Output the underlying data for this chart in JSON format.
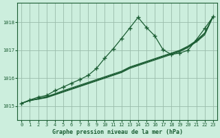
{
  "bg_color": "#cceedd",
  "grid_color": "#99bbaa",
  "line_color": "#1a5c32",
  "title": "Graphe pression niveau de la mer (hPa)",
  "xlim": [
    -0.5,
    23.5
  ],
  "ylim": [
    1014.5,
    1018.7
  ],
  "yticks": [
    1015,
    1016,
    1017,
    1018
  ],
  "xticks": [
    0,
    1,
    2,
    3,
    4,
    5,
    6,
    7,
    8,
    9,
    10,
    11,
    12,
    13,
    14,
    15,
    16,
    17,
    18,
    19,
    20,
    21,
    22,
    23
  ],
  "series": [
    {
      "x": [
        0,
        1,
        2,
        3,
        4,
        5,
        6,
        7,
        8,
        9,
        10,
        11,
        12,
        13,
        14,
        15,
        16,
        17,
        18,
        19,
        20,
        21,
        22,
        23
      ],
      "y": [
        1015.1,
        1015.2,
        1015.25,
        1015.3,
        1015.4,
        1015.5,
        1015.6,
        1015.7,
        1015.8,
        1015.9,
        1016.0,
        1016.1,
        1016.2,
        1016.35,
        1016.45,
        1016.55,
        1016.65,
        1016.75,
        1016.85,
        1016.95,
        1017.1,
        1017.3,
        1017.55,
        1018.2
      ],
      "marker": null,
      "lw": 0.9
    },
    {
      "x": [
        0,
        1,
        2,
        3,
        4,
        5,
        6,
        7,
        8,
        9,
        10,
        11,
        12,
        13,
        14,
        15,
        16,
        17,
        18,
        19,
        20,
        21,
        22,
        23
      ],
      "y": [
        1015.1,
        1015.2,
        1015.25,
        1015.32,
        1015.42,
        1015.52,
        1015.62,
        1015.72,
        1015.82,
        1015.92,
        1016.02,
        1016.12,
        1016.22,
        1016.38,
        1016.48,
        1016.58,
        1016.68,
        1016.78,
        1016.88,
        1016.98,
        1017.12,
        1017.32,
        1017.6,
        1018.2
      ],
      "marker": null,
      "lw": 0.9
    },
    {
      "x": [
        0,
        1,
        2,
        3,
        4,
        5,
        6,
        7,
        8,
        9,
        10,
        11,
        12,
        13,
        14,
        15,
        16,
        17,
        18,
        19,
        20,
        21,
        22,
        23
      ],
      "y": [
        1015.1,
        1015.2,
        1015.27,
        1015.34,
        1015.44,
        1015.55,
        1015.65,
        1015.75,
        1015.85,
        1015.95,
        1016.05,
        1016.15,
        1016.25,
        1016.4,
        1016.5,
        1016.6,
        1016.7,
        1016.8,
        1016.9,
        1017.0,
        1017.15,
        1017.35,
        1017.62,
        1018.2
      ],
      "marker": null,
      "lw": 0.9
    },
    {
      "x": [
        0,
        1,
        2,
        3,
        4,
        5,
        6,
        7,
        8,
        9,
        10,
        11,
        12,
        13,
        14,
        15,
        16,
        17,
        18,
        19,
        20,
        21,
        22,
        23
      ],
      "y": [
        1015.1,
        1015.22,
        1015.32,
        1015.38,
        1015.55,
        1015.68,
        1015.82,
        1015.95,
        1016.1,
        1016.35,
        1016.72,
        1017.05,
        1017.42,
        1017.8,
        1018.18,
        1017.82,
        1017.52,
        1017.02,
        1016.85,
        1016.9,
        1017.0,
        1017.38,
        1017.78,
        1018.2
      ],
      "marker": "+",
      "markersize": 4,
      "lw": 0.9
    }
  ]
}
